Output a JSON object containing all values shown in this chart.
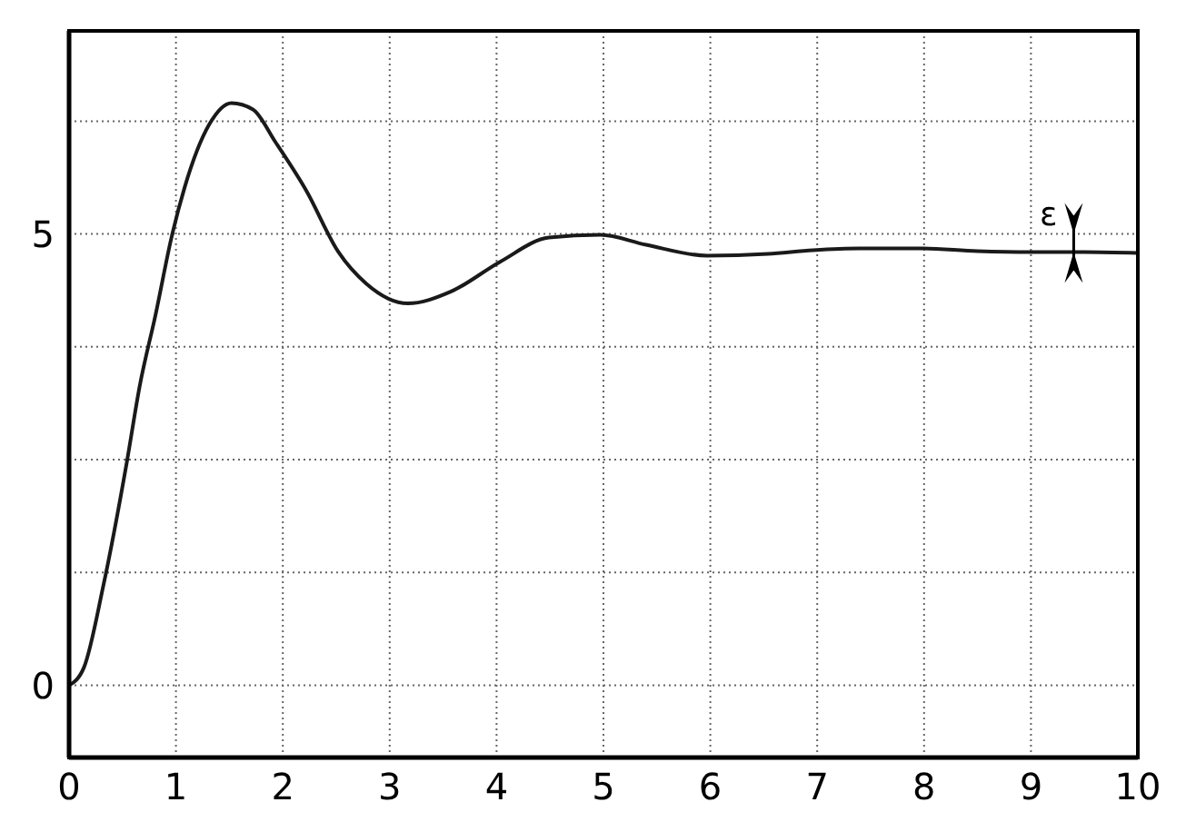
{
  "chart_data": {
    "type": "line",
    "x": [
      0,
      0.14,
      0.32,
      0.54,
      0.66,
      0.81,
      0.96,
      1.08,
      1.31,
      1.52,
      1.72,
      1.93,
      2.22,
      2.52,
      2.78,
      3.17,
      3.57,
      4.03,
      4.49,
      4.97,
      5.4,
      5.97,
      6.54,
      6.96,
      7.39,
      7.96,
      8.5,
      9,
      9.5,
      10
    ],
    "series": [
      {
        "color": "#1a1a1a",
        "values": [
          0,
          0.2,
          1.1,
          2.47,
          3.31,
          4.11,
          4.97,
          5.51,
          6.21,
          6.45,
          6.38,
          6.02,
          5.48,
          4.8,
          4.45,
          4.23,
          4.36,
          4.69,
          4.96,
          4.99,
          4.88,
          4.76,
          4.78,
          4.82,
          4.84,
          4.84,
          4.81,
          4.8,
          4.8,
          4.79
        ]
      }
    ],
    "xlim": [
      0,
      10
    ],
    "xticks": [
      0,
      1,
      2,
      3,
      4,
      5,
      6,
      7,
      8,
      9,
      10
    ],
    "ylim": [
      -0.8,
      7.25
    ],
    "yticks": [
      0,
      {
        "value": 1.25,
        "label": null
      },
      {
        "value": 2.5,
        "label": null
      },
      {
        "value": 3.75,
        "label": null
      },
      5,
      {
        "value": 6.25,
        "label": null
      }
    ],
    "grid": true,
    "marker": "none",
    "line_style": "solid",
    "annotations": [
      {
        "text": "ε",
        "x": 9.4,
        "y": 4.9
      }
    ]
  }
}
